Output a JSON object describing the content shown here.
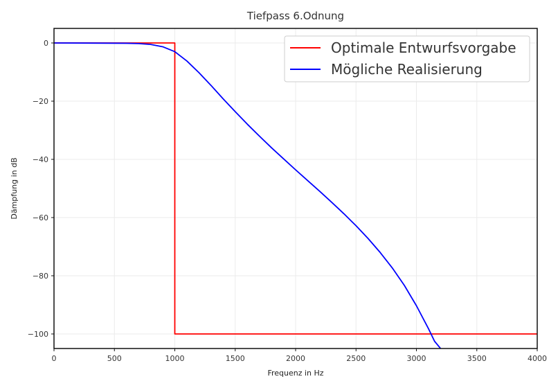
{
  "chart_data": {
    "type": "line",
    "title": "Tiefpass 6.Odnung",
    "xlabel": "Frequenz in Hz",
    "ylabel": "Dämpfung in dB",
    "xlim": [
      0,
      4000
    ],
    "ylim": [
      -105,
      5
    ],
    "xticks": [
      0,
      500,
      1000,
      1500,
      2000,
      2500,
      3000,
      3500,
      4000
    ],
    "xtick_labels": [
      "0",
      "500",
      "1000",
      "1500",
      "2000",
      "2500",
      "3000",
      "3500",
      "4000"
    ],
    "yticks": [
      0,
      -20,
      -40,
      -60,
      -80,
      -100
    ],
    "ytick_labels": [
      "0",
      "−20",
      "−40",
      "−60",
      "−80",
      "−100"
    ],
    "grid": true,
    "legend_position": "top-right",
    "series": [
      {
        "name": "Optimale Entwurfsvorgabe",
        "color": "#ff0000",
        "x": [
          0,
          1000,
          1000,
          4000
        ],
        "y": [
          0,
          0,
          -100,
          -100
        ]
      },
      {
        "name": "Mögliche Realisierung",
        "color": "#0000ff",
        "x": [
          0,
          600,
          700,
          800,
          900,
          1000,
          1100,
          1200,
          1300,
          1400,
          1500,
          1600,
          1700,
          1800,
          1900,
          2000,
          2100,
          2200,
          2300,
          2400,
          2500,
          2600,
          2700,
          2800,
          2900,
          3000,
          3100,
          3150,
          3200
        ],
        "y": [
          0,
          -0.1,
          -0.2,
          -0.5,
          -1.3,
          -3.0,
          -6.2,
          -10.2,
          -14.6,
          -19.2,
          -23.6,
          -27.9,
          -32.0,
          -36.0,
          -39.8,
          -43.6,
          -47.3,
          -51.0,
          -54.8,
          -58.7,
          -62.8,
          -67.2,
          -72.0,
          -77.3,
          -83.3,
          -90.3,
          -98.2,
          -102.5,
          -105.0
        ]
      }
    ]
  }
}
